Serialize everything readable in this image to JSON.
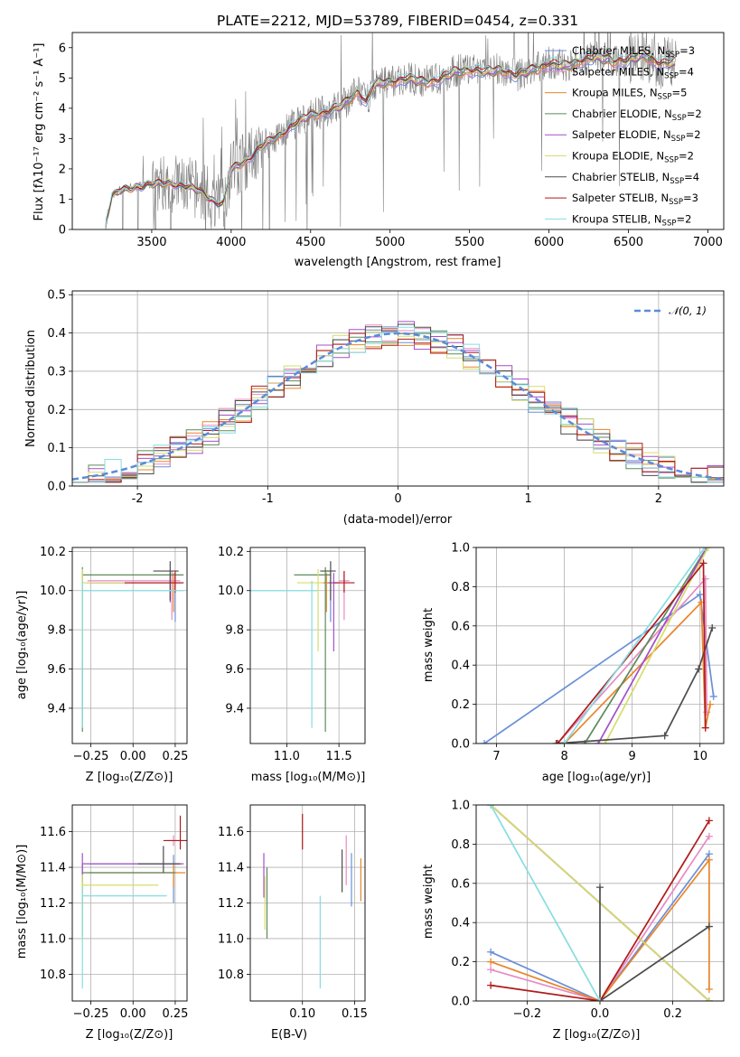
{
  "colors": {
    "chabrier_miles": "#6a8fd8",
    "salpeter_miles": "#e78ac3",
    "kroupa_miles": "#e8852a",
    "chabrier_elodie": "#5d8a5d",
    "salpeter_elodie": "#a44fc8",
    "kroupa_elodie": "#d7dc6a",
    "chabrier_stelib": "#4d4d4d",
    "salpeter_stelib": "#b01a1a",
    "kroupa_stelib": "#86dde0",
    "data_gray": "#808080",
    "normal_curve": "#5b8bd9"
  },
  "chart_data": [
    {
      "id": "spectrum",
      "type": "line",
      "title": "PLATE=2212, MJD=53789, FIBERID=0454, z=0.331",
      "xlabel": "wavelength [Angstrom, rest frame]",
      "ylabel": "Flux [fλ10⁻¹⁷ erg cm⁻² s⁻¹ A⁻¹]",
      "xlim": [
        3000,
        7100
      ],
      "ylim": [
        0,
        6.5
      ],
      "xticks": [
        3500,
        4000,
        4500,
        5000,
        5500,
        6000,
        6500,
        7000
      ],
      "yticks": [
        0,
        1,
        2,
        3,
        4,
        5,
        6
      ],
      "legend_position": "top-right",
      "series": [
        {
          "name": "Chabrier MILES, N",
          "sub": "SSP",
          "eq": "=3",
          "color_key": "chabrier_miles"
        },
        {
          "name": "Salpeter MILES, N",
          "sub": "SSP",
          "eq": "=4",
          "color_key": "salpeter_miles"
        },
        {
          "name": "Kroupa MILES, N",
          "sub": "SSP",
          "eq": "=5",
          "color_key": "kroupa_miles"
        },
        {
          "name": "Chabrier ELODIE, N",
          "sub": "SSP",
          "eq": "=2",
          "color_key": "chabrier_elodie"
        },
        {
          "name": "Salpeter ELODIE, N",
          "sub": "SSP",
          "eq": "=2",
          "color_key": "salpeter_elodie"
        },
        {
          "name": "Kroupa ELODIE, N",
          "sub": "SSP",
          "eq": "=2",
          "color_key": "kroupa_elodie"
        },
        {
          "name": "Chabrier STELIB, N",
          "sub": "SSP",
          "eq": "=4",
          "color_key": "chabrier_stelib"
        },
        {
          "name": "Salpeter STELIB, N",
          "sub": "SSP",
          "eq": "=3",
          "color_key": "salpeter_stelib"
        },
        {
          "name": "Kroupa STELIB, N",
          "sub": "SSP",
          "eq": "=2",
          "color_key": "kroupa_stelib"
        }
      ],
      "model_continuum": {
        "x": [
          3200,
          3250,
          3300,
          3400,
          3500,
          3600,
          3700,
          3800,
          3850,
          3900,
          3950,
          4000,
          4100,
          4200,
          4300,
          4400,
          4500,
          4600,
          4700,
          4800,
          4850,
          4900,
          5000,
          5100,
          5200,
          5300,
          5400,
          5500,
          5600,
          5700,
          5800,
          5900,
          6000,
          6100,
          6200,
          6300,
          6400,
          6500,
          6600,
          6700,
          6800
        ],
        "y": [
          0.0,
          1.1,
          1.3,
          1.4,
          1.5,
          1.55,
          1.45,
          1.3,
          1.1,
          0.9,
          0.85,
          2.0,
          2.3,
          2.8,
          3.1,
          3.5,
          3.8,
          3.9,
          4.1,
          4.6,
          4.2,
          4.8,
          4.9,
          5.0,
          4.9,
          4.95,
          5.2,
          5.3,
          5.2,
          5.3,
          5.1,
          5.3,
          5.5,
          5.4,
          5.6,
          5.7,
          5.6,
          5.6,
          5.8,
          5.5,
          5.5
        ]
      }
    },
    {
      "id": "residuals",
      "type": "histogram",
      "xlabel": "(data-model)/error",
      "ylabel": "Normed distribution",
      "xlim": [
        -2.5,
        2.5
      ],
      "ylim": [
        0,
        0.51
      ],
      "xticks": [
        -2,
        -1,
        0,
        1,
        2
      ],
      "yticks": [
        0.0,
        0.1,
        0.2,
        0.3,
        0.4,
        0.5
      ],
      "grid": true,
      "legend_position": "top-right",
      "normal_label": "𝒩(0, 1)"
    },
    {
      "id": "age_vs_Z",
      "type": "scatter",
      "xlabel": "Z [log₁₀(Z/Z⊙)]",
      "ylabel": "age  [log₁₀(age/yr)]",
      "xlim": [
        -0.36,
        0.32
      ],
      "ylim": [
        9.22,
        10.22
      ],
      "xticks": [
        -0.25,
        0.0,
        0.25
      ],
      "yticks": [
        9.4,
        9.6,
        9.8,
        10.0,
        10.2
      ],
      "grid": true,
      "points": [
        {
          "c": "chabrier_miles",
          "x": 0.25,
          "y": 10.04,
          "xe": [
            0.5,
            0.05
          ],
          "ye": [
            0.2,
            0.05
          ]
        },
        {
          "c": "salpeter_miles",
          "x": 0.23,
          "y": 10.05,
          "xe": [
            0.5,
            0.05
          ],
          "ye": [
            0.2,
            0.05
          ]
        },
        {
          "c": "kroupa_miles",
          "x": 0.24,
          "y": 10.04,
          "xe": [
            0.5,
            0.05
          ],
          "ye": [
            0.15,
            0.05
          ]
        },
        {
          "c": "chabrier_elodie",
          "x": -0.3,
          "y": 10.08,
          "xe": [
            0.0,
            0.6
          ],
          "ye": [
            0.8,
            0.04
          ]
        },
        {
          "c": "salpeter_elodie",
          "x": 0.22,
          "y": 10.04,
          "xe": [
            0.5,
            0.06
          ],
          "ye": [
            0.1,
            0.05
          ]
        },
        {
          "c": "kroupa_elodie",
          "x": -0.3,
          "y": 10.04,
          "xe": [
            0.0,
            0.55
          ],
          "ye": [
            0.4,
            0.07
          ]
        },
        {
          "c": "chabrier_stelib",
          "x": 0.22,
          "y": 10.1,
          "xe": [
            0.1,
            0.05
          ],
          "ye": [
            0.15,
            0.05
          ]
        },
        {
          "c": "salpeter_stelib",
          "x": 0.25,
          "y": 10.04,
          "xe": [
            0.3,
            0.05
          ],
          "ye": [
            0.05,
            0.06
          ]
        },
        {
          "c": "kroupa_stelib",
          "x": -0.3,
          "y": 10.0,
          "xe": [
            0.0,
            0.6
          ],
          "ye": [
            0.7,
            0.05
          ]
        }
      ]
    },
    {
      "id": "age_vs_mass",
      "type": "scatter",
      "xlabel": "mass [log₁₀(M/M⊙)]",
      "ylabel": "",
      "xlim": [
        10.65,
        11.75
      ],
      "ylim": [
        9.22,
        10.22
      ],
      "xticks": [
        11.0,
        11.5
      ],
      "yticks": [
        9.4,
        9.6,
        9.8,
        10.0,
        10.2
      ],
      "grid": true,
      "points": [
        {
          "c": "chabrier_miles",
          "x": 11.42,
          "y": 10.04,
          "xe": [
            0.05,
            0.05
          ],
          "ye": [
            0.2,
            0.05
          ]
        },
        {
          "c": "salpeter_miles",
          "x": 11.55,
          "y": 10.05,
          "xe": [
            0.05,
            0.05
          ],
          "ye": [
            0.2,
            0.05
          ]
        },
        {
          "c": "kroupa_miles",
          "x": 11.38,
          "y": 10.04,
          "xe": [
            0.05,
            0.05
          ],
          "ye": [
            0.15,
            0.05
          ]
        },
        {
          "c": "chabrier_elodie",
          "x": 11.37,
          "y": 10.08,
          "xe": [
            0.3,
            0.05
          ],
          "ye": [
            0.8,
            0.04
          ]
        },
        {
          "c": "salpeter_elodie",
          "x": 11.45,
          "y": 10.04,
          "xe": [
            0.05,
            0.05
          ],
          "ye": [
            0.35,
            0.05
          ]
        },
        {
          "c": "kroupa_elodie",
          "x": 11.3,
          "y": 10.04,
          "xe": [
            0.2,
            0.05
          ],
          "ye": [
            0.35,
            0.07
          ]
        },
        {
          "c": "chabrier_stelib",
          "x": 11.42,
          "y": 10.1,
          "xe": [
            0.1,
            0.05
          ],
          "ye": [
            0.15,
            0.05
          ]
        },
        {
          "c": "salpeter_stelib",
          "x": 11.55,
          "y": 10.04,
          "xe": [
            0.1,
            0.1
          ],
          "ye": [
            0.05,
            0.06
          ]
        },
        {
          "c": "kroupa_stelib",
          "x": 11.24,
          "y": 10.0,
          "xe": [
            0.6,
            0.05
          ],
          "ye": [
            0.7,
            0.05
          ]
        }
      ]
    },
    {
      "id": "weights_vs_age",
      "type": "line",
      "xlabel": "age  [log₁₀(age/yr)]",
      "ylabel": "mass weight",
      "xlim": [
        6.7,
        10.35
      ],
      "ylim": [
        0,
        1
      ],
      "xticks": [
        7,
        8,
        9,
        10
      ],
      "yticks": [
        0.0,
        0.2,
        0.4,
        0.6,
        0.8,
        1.0
      ],
      "grid": true,
      "series": [
        {
          "c": "chabrier_miles",
          "x": [
            6.82,
            10.0,
            10.2
          ],
          "y": [
            0.0,
            0.76,
            0.24
          ]
        },
        {
          "c": "salpeter_miles",
          "x": [
            7.9,
            10.08,
            10.1
          ],
          "y": [
            0.0,
            0.84,
            0.16
          ]
        },
        {
          "c": "kroupa_miles",
          "x": [
            8.0,
            10.02,
            10.08,
            10.15
          ],
          "y": [
            0.0,
            0.72,
            0.08,
            0.2
          ]
        },
        {
          "c": "chabrier_elodie",
          "x": [
            8.3,
            10.1
          ],
          "y": [
            0.0,
            1.0
          ]
        },
        {
          "c": "salpeter_elodie",
          "x": [
            8.5,
            10.1
          ],
          "y": [
            0.0,
            1.0
          ]
        },
        {
          "c": "kroupa_elodie",
          "x": [
            8.6,
            10.12
          ],
          "y": [
            0.0,
            1.0
          ]
        },
        {
          "c": "chabrier_stelib",
          "x": [
            7.88,
            9.48,
            9.98,
            10.18
          ],
          "y": [
            0.0,
            0.04,
            0.38,
            0.59
          ]
        },
        {
          "c": "salpeter_stelib",
          "x": [
            7.9,
            10.05,
            10.08
          ],
          "y": [
            0.0,
            0.92,
            0.08
          ]
        },
        {
          "c": "kroupa_stelib",
          "x": [
            8.0,
            10.07
          ],
          "y": [
            0.0,
            1.0
          ]
        }
      ]
    },
    {
      "id": "mass_vs_Z",
      "type": "scatter",
      "xlabel": "Z [log₁₀(Z/Z⊙)]",
      "ylabel": "mass [log₁₀(M/M⊙)]",
      "xlim": [
        -0.36,
        0.32
      ],
      "ylim": [
        10.65,
        11.75
      ],
      "xticks": [
        -0.25,
        0.0,
        0.25
      ],
      "yticks": [
        10.8,
        11.0,
        11.2,
        11.4,
        11.6
      ],
      "grid": true,
      "points": [
        {
          "c": "chabrier_miles",
          "x": 0.24,
          "y": 11.42,
          "xe": [
            0.5,
            0.05
          ],
          "ye": [
            0.22,
            0.05
          ]
        },
        {
          "c": "salpeter_miles",
          "x": 0.24,
          "y": 11.55,
          "xe": [
            0.05,
            0.05
          ],
          "ye": [
            0.03,
            0.03
          ]
        },
        {
          "c": "kroupa_miles",
          "x": 0.24,
          "y": 11.37,
          "xe": [
            0.5,
            0.07
          ],
          "ye": [
            0.08,
            0.05
          ]
        },
        {
          "c": "chabrier_elodie",
          "x": -0.3,
          "y": 11.37,
          "xe": [
            0.0,
            0.55
          ],
          "ye": [
            0.35,
            0.05
          ]
        },
        {
          "c": "salpeter_elodie",
          "x": -0.3,
          "y": 11.42,
          "xe": [
            0.0,
            0.6
          ],
          "ye": [
            0.1,
            0.06
          ]
        },
        {
          "c": "kroupa_elodie",
          "x": -0.3,
          "y": 11.3,
          "xe": [
            0.0,
            0.45
          ],
          "ye": [
            0.3,
            0.06
          ]
        },
        {
          "c": "chabrier_stelib",
          "x": 0.18,
          "y": 11.42,
          "xe": [
            0.15,
            0.1
          ],
          "ye": [
            0.05,
            0.1
          ]
        },
        {
          "c": "salpeter_stelib",
          "x": 0.28,
          "y": 11.55,
          "xe": [
            0.1,
            0.05
          ],
          "ye": [
            0.05,
            0.14
          ]
        },
        {
          "c": "kroupa_stelib",
          "x": -0.3,
          "y": 11.24,
          "xe": [
            0.0,
            0.5
          ],
          "ye": [
            0.52,
            0.05
          ]
        }
      ]
    },
    {
      "id": "mass_vs_EBV",
      "type": "errorbar",
      "xlabel": "E(B-V)",
      "ylabel": "",
      "xlim": [
        0.05,
        0.16
      ],
      "ylim": [
        10.65,
        11.75
      ],
      "xticks": [
        0.1,
        0.15
      ],
      "yticks": [
        10.8,
        11.0,
        11.2,
        11.4,
        11.6
      ],
      "grid": true,
      "points": [
        {
          "c": "chabrier_miles",
          "x": 0.147,
          "y": 11.3,
          "ye": [
            0.12,
            0.18
          ]
        },
        {
          "c": "salpeter_miles",
          "x": 0.142,
          "y": 11.45,
          "ye": [
            0.15,
            0.13
          ]
        },
        {
          "c": "kroupa_miles",
          "x": 0.156,
          "y": 11.33,
          "ye": [
            0.12,
            0.12
          ]
        },
        {
          "c": "chabrier_elodie",
          "x": 0.066,
          "y": 11.2,
          "ye": [
            0.2,
            0.2
          ]
        },
        {
          "c": "salpeter_elodie",
          "x": 0.063,
          "y": 11.33,
          "ye": [
            0.1,
            0.15
          ]
        },
        {
          "c": "kroupa_elodie",
          "x": 0.064,
          "y": 11.2,
          "ye": [
            0.15,
            0.15
          ]
        },
        {
          "c": "chabrier_stelib",
          "x": 0.138,
          "y": 11.38,
          "ye": [
            0.12,
            0.12
          ]
        },
        {
          "c": "salpeter_stelib",
          "x": 0.1,
          "y": 11.6,
          "ye": [
            0.1,
            0.1
          ]
        },
        {
          "c": "kroupa_stelib",
          "x": 0.117,
          "y": 10.98,
          "ye": [
            0.26,
            0.26
          ]
        }
      ]
    },
    {
      "id": "weights_vs_Z",
      "type": "line",
      "xlabel": "Z [log₁₀(Z/Z⊙)]",
      "ylabel": "mass weight",
      "xlim": [
        -0.34,
        0.34
      ],
      "ylim": [
        0,
        1
      ],
      "xticks": [
        -0.2,
        0.0,
        0.2
      ],
      "yticks": [
        0.0,
        0.2,
        0.4,
        0.6,
        0.8,
        1.0
      ],
      "grid": true,
      "series": [
        {
          "c": "chabrier_miles",
          "x": [
            -0.3,
            0.0,
            0.3
          ],
          "y": [
            0.25,
            0.0,
            0.75
          ]
        },
        {
          "c": "salpeter_miles",
          "x": [
            -0.3,
            0.0,
            0.3
          ],
          "y": [
            0.16,
            0.0,
            0.84
          ]
        },
        {
          "c": "kroupa_miles",
          "x": [
            -0.3,
            0.0,
            0.3,
            0.3
          ],
          "y": [
            0.2,
            0.0,
            0.72,
            0.06
          ]
        },
        {
          "c": "chabrier_elodie",
          "x": [
            -0.3,
            0.3
          ],
          "y": [
            1.0,
            0.0
          ]
        },
        {
          "c": "salpeter_elodie",
          "x": [
            -0.3,
            0.3
          ],
          "y": [
            1.0,
            0.0
          ]
        },
        {
          "c": "kroupa_elodie",
          "x": [
            -0.3,
            0.3
          ],
          "y": [
            1.0,
            0.0
          ]
        },
        {
          "c": "chabrier_stelib",
          "x": [
            0.0,
            0.0,
            0.3
          ],
          "y": [
            0.58,
            0.0,
            0.38
          ]
        },
        {
          "c": "salpeter_stelib",
          "x": [
            -0.3,
            0.0,
            0.3
          ],
          "y": [
            0.08,
            0.0,
            0.92
          ]
        },
        {
          "c": "kroupa_stelib",
          "x": [
            -0.3,
            0.0
          ],
          "y": [
            1.0,
            0.0
          ]
        }
      ]
    }
  ]
}
